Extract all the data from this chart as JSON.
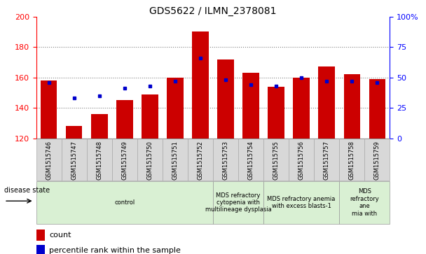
{
  "title": "GDS5622 / ILMN_2378081",
  "samples": [
    "GSM1515746",
    "GSM1515747",
    "GSM1515748",
    "GSM1515749",
    "GSM1515750",
    "GSM1515751",
    "GSM1515752",
    "GSM1515753",
    "GSM1515754",
    "GSM1515755",
    "GSM1515756",
    "GSM1515757",
    "GSM1515758",
    "GSM1515759"
  ],
  "counts": [
    158,
    128,
    136,
    145,
    149,
    160,
    190,
    172,
    163,
    154,
    160,
    167,
    162,
    159
  ],
  "percentile_ranks": [
    46,
    33,
    35,
    41,
    43,
    47,
    66,
    48,
    44,
    43,
    50,
    47,
    47,
    46
  ],
  "ylim_left": [
    120,
    200
  ],
  "ylim_right": [
    0,
    100
  ],
  "yticks_left": [
    120,
    140,
    160,
    180,
    200
  ],
  "yticks_right": [
    0,
    25,
    50,
    75,
    100
  ],
  "bar_color": "#cc0000",
  "marker_color": "#0000cc",
  "bar_bottom": 120,
  "disease_groups": [
    {
      "label": "control",
      "start": 0,
      "end": 7,
      "color": "#d9f0d3"
    },
    {
      "label": "MDS refractory\ncytopenia with\nmultilineage dysplasia",
      "start": 7,
      "end": 9,
      "color": "#d9f0d3"
    },
    {
      "label": "MDS refractory anemia\nwith excess blasts-1",
      "start": 9,
      "end": 12,
      "color": "#d9f0d3"
    },
    {
      "label": "MDS\nrefractory\nane\nmia with",
      "start": 12,
      "end": 14,
      "color": "#d9f0d3"
    }
  ],
  "disease_state_label": "disease state"
}
